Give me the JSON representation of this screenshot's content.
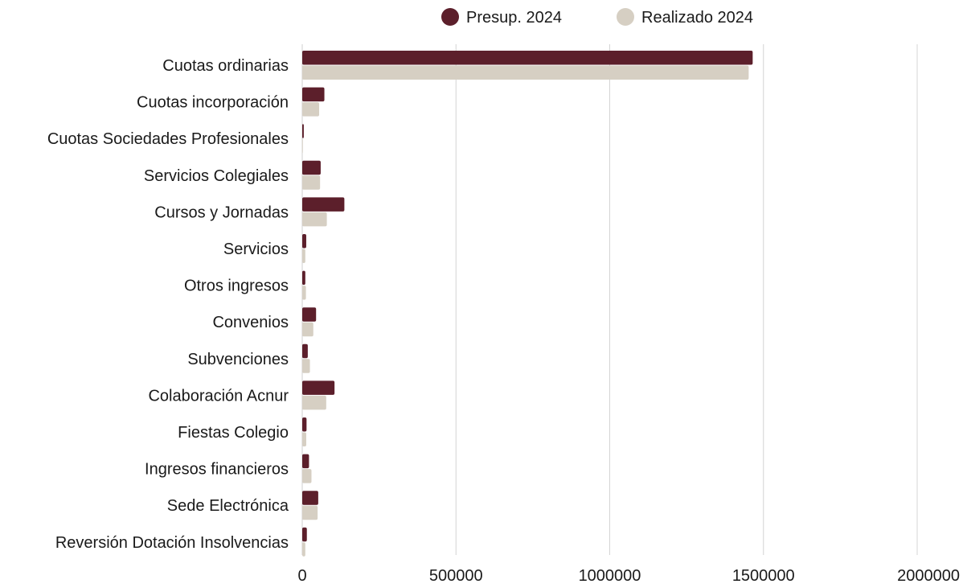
{
  "chart_data": {
    "type": "bar",
    "orientation": "horizontal",
    "title": "",
    "xlabel": "",
    "ylabel": "",
    "xlim": [
      0,
      2000000
    ],
    "x_ticks": [
      0,
      500000,
      1000000,
      1500000,
      2000000
    ],
    "x_tick_labels": [
      "0",
      "500000",
      "1000000",
      "1500000",
      "2000000"
    ],
    "grid": "vertical",
    "legend": "top-center",
    "categories": [
      "Cuotas ordinarias",
      "Cuotas incorporación",
      "Cuotas Sociedades Profesionales",
      "Servicios Colegiales",
      "Cursos y Jornadas",
      "Servicios",
      "Otros ingresos",
      "Convenios",
      "Subvenciones",
      "Colaboración Acnur",
      "Fiestas Colegio",
      "Ingresos financieros",
      "Sede Electrónica",
      "Reversión Dotación Insolvencias"
    ],
    "series": [
      {
        "name": "Presup. 2024",
        "color": "#5c1f2b",
        "values": [
          1465000,
          72000,
          5000,
          60000,
          137000,
          13000,
          10000,
          45000,
          18000,
          105000,
          14000,
          22000,
          52000,
          15000
        ]
      },
      {
        "name": "Realizado 2024",
        "color": "#d6cfc3",
        "values": [
          1452000,
          55000,
          2000,
          58000,
          80000,
          10000,
          12000,
          36000,
          25000,
          78000,
          13000,
          30000,
          50000,
          10000
        ]
      }
    ]
  }
}
